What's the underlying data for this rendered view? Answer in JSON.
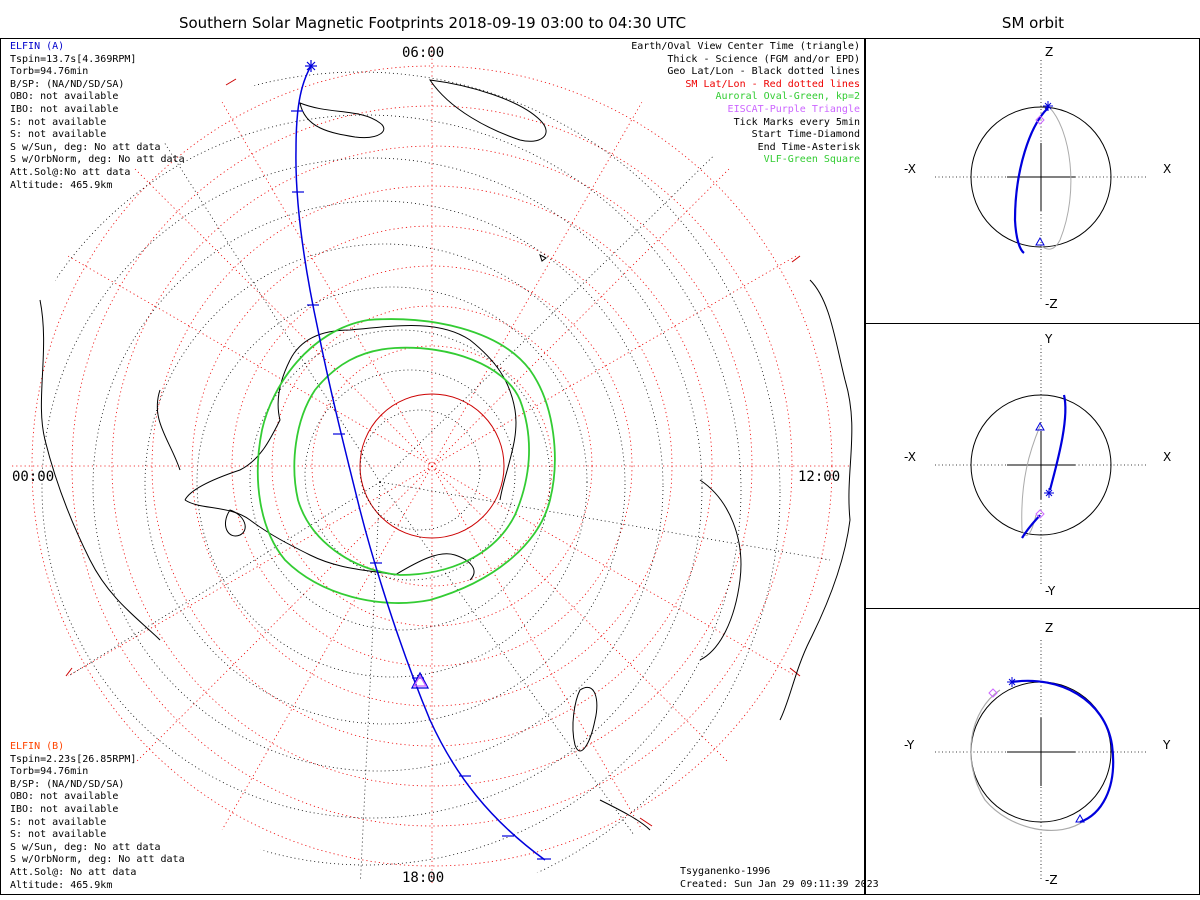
{
  "title": "Southern Solar Magnetic Footprints 2018-09-19 03:00 to 04:30 UTC",
  "orbit_title": "SM orbit",
  "hours": {
    "h06": "06:00",
    "h00": "00:00",
    "h12": "12:00",
    "h18": "18:00"
  },
  "elfin_a": {
    "name": "ELFIN (A)",
    "color": "#0000cc",
    "lines": [
      "Tspin=13.7s[4.369RPM]",
      "Torb=94.76min",
      "B/SP: (NA/ND/SD/SA)",
      "OBO: not available",
      "IBO: not available",
      "S: not available",
      "S: not available",
      "S w/Sun, deg: No att data",
      "S w/OrbNorm, deg: No att data",
      "Att.Sol@:No att data",
      "Altitude: 465.9km"
    ]
  },
  "elfin_b": {
    "name": "ELFIN (B)",
    "color": "#ff4400",
    "lines": [
      "Tspin=2.23s[26.85RPM]",
      "Torb=94.76min",
      "B/SP: (NA/ND/SD/SA)",
      "OBO: not available",
      "IBO: not available",
      "S: not available",
      "S: not available",
      "S w/Sun, deg: No att data",
      "S w/OrbNorm, deg: No att data",
      "Att.Sol@: No att data",
      "Altitude: 465.9km"
    ]
  },
  "legend": [
    {
      "text": "Earth/Oval View Center Time (triangle)",
      "color": "#000000"
    },
    {
      "text": "Thick - Science (FGM and/or EPD)",
      "color": "#000000"
    },
    {
      "text": "Geo Lat/Lon - Black dotted lines",
      "color": "#000000"
    },
    {
      "text": "SM Lat/Lon - Red dotted lines",
      "color": "#ee0000"
    },
    {
      "text": "Auroral Oval-Green, kp=2",
      "color": "#33cc33"
    },
    {
      "text": "EISCAT-Purple Triangle",
      "color": "#cc66ff"
    },
    {
      "text": "Tick Marks every 5min",
      "color": "#000000"
    },
    {
      "text": "Start Time-Diamond",
      "color": "#000000"
    },
    {
      "text": "End Time-Asterisk",
      "color": "#000000"
    },
    {
      "text": "VLF-Green Square",
      "color": "#33cc33"
    }
  ],
  "model": "Tsyganenko-1996",
  "created": "Created: Sun Jan 29 09:11:39 2023",
  "panels": [
    {
      "top": "Z",
      "bottom": "-Z",
      "left": "-X",
      "right": "X"
    },
    {
      "top": "Y",
      "bottom": "-Y",
      "left": "-X",
      "right": "X"
    },
    {
      "top": "Z",
      "bottom": "-Z",
      "left": "-Y",
      "right": "Y"
    }
  ],
  "colors": {
    "orbit": "#0000dd",
    "sm_grid": "#ee0000",
    "geo_grid": "#000000",
    "oval": "#33cc33",
    "ghost_orbit": "#aaaaaa",
    "eiscat": "#cc66ff"
  }
}
